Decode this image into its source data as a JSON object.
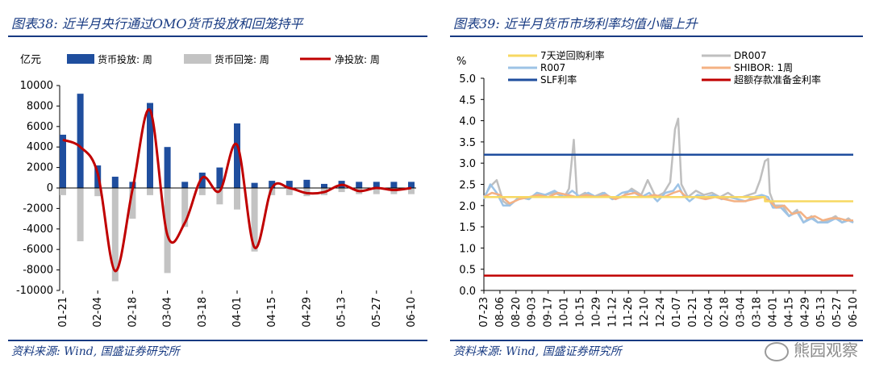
{
  "left": {
    "title": "图表38:  近半月央行通过OMO货币投放和回笼持平",
    "source": "资料来源:  Wind,  国盛证券研究所",
    "chart_data": {
      "type": "bar",
      "unit_label": "亿元",
      "legend": {
        "injection": "货币投放: 周",
        "withdrawal": "货币回笼: 周",
        "net": "净投放: 周"
      },
      "colors": {
        "injection": "#1f4e9e",
        "withdrawal": "#c3c3c3",
        "net": "#c00000"
      },
      "ylim": [
        -10000,
        10000
      ],
      "yticks": [
        10000,
        8000,
        6000,
        4000,
        2000,
        0,
        -2000,
        -4000,
        -6000,
        -8000,
        -10000
      ],
      "xticks": [
        "01-21",
        "02-04",
        "02-18",
        "03-04",
        "03-18",
        "04-01",
        "04-15",
        "04-29",
        "05-13",
        "05-27",
        "06-10"
      ],
      "n_periods": 21,
      "series": [
        {
          "name": "货币投放: 周",
          "values": [
            5200,
            9200,
            2200,
            1100,
            600,
            8300,
            4000,
            600,
            1500,
            2000,
            6300,
            500,
            700,
            700,
            800,
            400,
            700,
            600,
            600,
            600,
            600
          ]
        },
        {
          "name": "货币回笼: 周",
          "values": [
            -700,
            -5200,
            -800,
            -9100,
            -3000,
            -700,
            -8300,
            -3800,
            -700,
            -1600,
            -2100,
            -6200,
            -700,
            -700,
            -800,
            -700,
            -400,
            -600,
            -600,
            -600,
            -600
          ]
        },
        {
          "name": "净投放: 周",
          "values": [
            4700,
            4000,
            1400,
            -8100,
            -100,
            7600,
            -4600,
            -3400,
            1000,
            -300,
            4200,
            -5800,
            0,
            0,
            -500,
            -400,
            300,
            -300,
            0,
            -200,
            0
          ]
        }
      ]
    }
  },
  "right": {
    "title": "图表39:  近半月货币市场利率均值小幅上升",
    "source": "资料来源:  Wind,  国盛证券研究所",
    "watermark": "熊园观察",
    "chart_data": {
      "type": "line",
      "unit_label": "%",
      "ylim": [
        0.0,
        5.0
      ],
      "yticks": [
        "5.0",
        "4.5",
        "4.0",
        "3.5",
        "3.0",
        "2.5",
        "2.0",
        "1.5",
        "1.0",
        "0.5",
        "0.0"
      ],
      "xticks": [
        "07-23",
        "08-06",
        "08-20",
        "09-03",
        "09-17",
        "10-01",
        "10-15",
        "10-29",
        "11-12",
        "11-26",
        "12-10",
        "12-24",
        "01-07",
        "01-21",
        "02-04",
        "02-18",
        "03-04",
        "03-18",
        "04-01",
        "04-15",
        "04-29",
        "05-13",
        "05-27",
        "06-10"
      ],
      "legend": [
        "7天逆回购利率",
        "DR007",
        "R007",
        "SHIBOR: 1周",
        "SLF利率",
        "超额存款准备金利率"
      ],
      "series": [
        {
          "name": "7天逆回购利率",
          "color": "#f7d862",
          "x": [
            0,
            23
          ],
          "values": [
            2.2,
            2.2
          ],
          "step": [
            [
              0,
              2.2
            ],
            [
              17.5,
              2.2
            ],
            [
              17.5,
              2.1
            ],
            [
              23,
              2.1
            ]
          ]
        },
        {
          "name": "DR007",
          "color": "#bfbfbf",
          "points": [
            [
              0,
              2.2
            ],
            [
              0.4,
              2.45
            ],
            [
              0.8,
              2.6
            ],
            [
              1.2,
              2.1
            ],
            [
              1.6,
              2.0
            ],
            [
              2.2,
              2.2
            ],
            [
              2.8,
              2.15
            ],
            [
              3.3,
              2.3
            ],
            [
              3.8,
              2.25
            ],
            [
              4.4,
              2.3
            ],
            [
              5.0,
              2.2
            ],
            [
              5.3,
              2.4
            ],
            [
              5.6,
              3.55
            ],
            [
              5.8,
              2.2
            ],
            [
              6.3,
              2.3
            ],
            [
              6.8,
              2.2
            ],
            [
              7.4,
              2.3
            ],
            [
              8.0,
              2.15
            ],
            [
              8.6,
              2.2
            ],
            [
              9.2,
              2.4
            ],
            [
              9.8,
              2.25
            ],
            [
              10.2,
              2.6
            ],
            [
              10.7,
              2.2
            ],
            [
              11.2,
              2.3
            ],
            [
              11.6,
              2.55
            ],
            [
              11.9,
              3.8
            ],
            [
              12.1,
              4.05
            ],
            [
              12.3,
              2.5
            ],
            [
              12.7,
              2.2
            ],
            [
              13.2,
              2.35
            ],
            [
              13.7,
              2.25
            ],
            [
              14.2,
              2.3
            ],
            [
              14.7,
              2.2
            ],
            [
              15.2,
              2.3
            ],
            [
              15.6,
              2.2
            ],
            [
              16.1,
              2.2
            ],
            [
              16.5,
              2.25
            ],
            [
              16.9,
              2.3
            ],
            [
              17.2,
              2.6
            ],
            [
              17.5,
              3.05
            ],
            [
              17.7,
              3.1
            ],
            [
              17.8,
              2.3
            ],
            [
              18.1,
              2.0
            ],
            [
              18.6,
              2.0
            ],
            [
              19.0,
              1.75
            ],
            [
              19.5,
              1.9
            ],
            [
              19.9,
              1.6
            ],
            [
              20.4,
              1.75
            ],
            [
              20.8,
              1.6
            ],
            [
              21.4,
              1.65
            ],
            [
              21.9,
              1.75
            ],
            [
              22.3,
              1.6
            ],
            [
              22.7,
              1.7
            ],
            [
              23.0,
              1.6
            ]
          ]
        },
        {
          "name": "R007",
          "color": "#9dc3e6",
          "points": [
            [
              0,
              2.15
            ],
            [
              0.4,
              2.5
            ],
            [
              0.8,
              2.3
            ],
            [
              1.2,
              2.0
            ],
            [
              1.6,
              2.0
            ],
            [
              2.2,
              2.2
            ],
            [
              2.8,
              2.15
            ],
            [
              3.3,
              2.3
            ],
            [
              3.8,
              2.25
            ],
            [
              4.4,
              2.35
            ],
            [
              5.0,
              2.2
            ],
            [
              5.5,
              2.35
            ],
            [
              6.0,
              2.2
            ],
            [
              6.5,
              2.3
            ],
            [
              7.0,
              2.2
            ],
            [
              7.5,
              2.3
            ],
            [
              8.0,
              2.15
            ],
            [
              8.6,
              2.3
            ],
            [
              9.2,
              2.35
            ],
            [
              9.8,
              2.2
            ],
            [
              10.3,
              2.3
            ],
            [
              10.8,
              2.1
            ],
            [
              11.3,
              2.3
            ],
            [
              11.8,
              2.35
            ],
            [
              12.1,
              2.5
            ],
            [
              12.4,
              2.25
            ],
            [
              12.8,
              2.1
            ],
            [
              13.3,
              2.25
            ],
            [
              13.8,
              2.2
            ],
            [
              14.3,
              2.25
            ],
            [
              14.8,
              2.15
            ],
            [
              15.3,
              2.2
            ],
            [
              15.8,
              2.15
            ],
            [
              16.3,
              2.1
            ],
            [
              16.8,
              2.2
            ],
            [
              17.3,
              2.25
            ],
            [
              17.7,
              2.2
            ],
            [
              18.0,
              1.95
            ],
            [
              18.5,
              1.95
            ],
            [
              19.0,
              1.75
            ],
            [
              19.5,
              1.85
            ],
            [
              19.9,
              1.6
            ],
            [
              20.4,
              1.7
            ],
            [
              20.8,
              1.6
            ],
            [
              21.4,
              1.6
            ],
            [
              21.9,
              1.7
            ],
            [
              22.3,
              1.6
            ],
            [
              22.7,
              1.65
            ],
            [
              23.0,
              1.6
            ]
          ]
        },
        {
          "name": "SHIBOR: 1周",
          "color": "#f4b183",
          "points": [
            [
              0,
              2.2
            ],
            [
              0.5,
              2.3
            ],
            [
              1.0,
              2.25
            ],
            [
              1.6,
              2.05
            ],
            [
              2.2,
              2.15
            ],
            [
              2.8,
              2.2
            ],
            [
              3.4,
              2.25
            ],
            [
              4.0,
              2.2
            ],
            [
              4.6,
              2.3
            ],
            [
              5.2,
              2.25
            ],
            [
              5.8,
              2.2
            ],
            [
              6.4,
              2.25
            ],
            [
              7.0,
              2.2
            ],
            [
              7.6,
              2.25
            ],
            [
              8.2,
              2.15
            ],
            [
              8.8,
              2.25
            ],
            [
              9.4,
              2.3
            ],
            [
              10.0,
              2.2
            ],
            [
              10.6,
              2.25
            ],
            [
              11.2,
              2.2
            ],
            [
              11.8,
              2.3
            ],
            [
              12.2,
              2.35
            ],
            [
              12.6,
              2.2
            ],
            [
              13.2,
              2.2
            ],
            [
              13.8,
              2.15
            ],
            [
              14.4,
              2.2
            ],
            [
              15.0,
              2.15
            ],
            [
              15.6,
              2.1
            ],
            [
              16.2,
              2.1
            ],
            [
              16.8,
              2.15
            ],
            [
              17.4,
              2.2
            ],
            [
              17.8,
              2.1
            ],
            [
              18.2,
              1.95
            ],
            [
              18.7,
              2.0
            ],
            [
              19.2,
              1.8
            ],
            [
              19.7,
              1.85
            ],
            [
              20.1,
              1.7
            ],
            [
              20.6,
              1.75
            ],
            [
              21.1,
              1.65
            ],
            [
              21.6,
              1.7
            ],
            [
              22.1,
              1.7
            ],
            [
              22.6,
              1.65
            ],
            [
              23.0,
              1.65
            ]
          ]
        },
        {
          "name": "SLF利率",
          "color": "#1f4e9e",
          "x": [
            0,
            23
          ],
          "values": [
            3.2,
            3.2
          ]
        },
        {
          "name": "超额存款准备金利率",
          "color": "#c00000",
          "x": [
            0,
            23
          ],
          "values": [
            0.35,
            0.35
          ]
        }
      ]
    }
  }
}
